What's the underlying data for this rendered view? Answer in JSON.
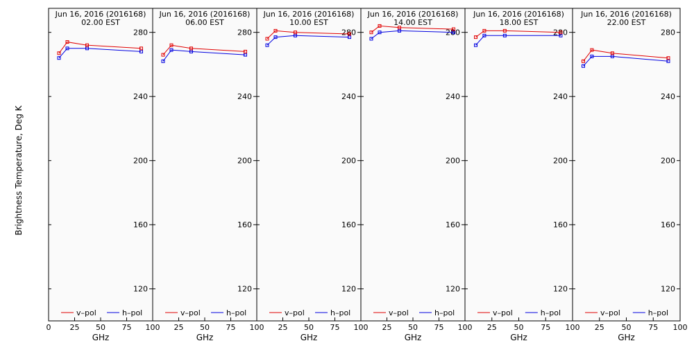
{
  "figure": {
    "ylabel": "Brightness Temperature, Deg K",
    "xlabel": "GHz",
    "legend": {
      "vpol": "v–pol",
      "hpol": "h–pol",
      "placement": "bottom"
    },
    "colors": {
      "vpol": "#e00000",
      "hpol": "#0000e0",
      "background": "#fafafa",
      "frame": "#000000"
    }
  },
  "chart_data": [
    {
      "type": "line",
      "title": "Jun 16, 2016 (2016168)",
      "subtitle": "02.00 EST",
      "x": [
        10,
        18,
        37,
        89
      ],
      "series": [
        {
          "name": "v–pol",
          "values": [
            267,
            274,
            272,
            270
          ]
        },
        {
          "name": "h–pol",
          "values": [
            264,
            270,
            270,
            268
          ]
        }
      ],
      "xlim": [
        0,
        100
      ],
      "ylim": [
        100,
        295
      ],
      "xticks": [
        0,
        25,
        50,
        75,
        100
      ],
      "yticks": [
        120,
        160,
        200,
        240,
        280
      ],
      "xtick_labels": [
        "0",
        "25",
        "50",
        "75",
        "100"
      ],
      "ytick_labels": [
        "120",
        "160",
        "200",
        "240",
        "280"
      ]
    },
    {
      "type": "line",
      "title": "Jun 16, 2016 (2016168)",
      "subtitle": "06.00 EST",
      "x": [
        10,
        18,
        37,
        89
      ],
      "series": [
        {
          "name": "v–pol",
          "values": [
            266,
            272,
            270,
            268
          ]
        },
        {
          "name": "h–pol",
          "values": [
            262,
            269,
            268,
            266
          ]
        }
      ],
      "xlim": [
        0,
        100
      ],
      "ylim": [
        100,
        295
      ],
      "xticks": [
        0,
        25,
        50,
        75,
        100
      ],
      "yticks": [
        120,
        160,
        200,
        240,
        280
      ],
      "xtick_labels": [
        "",
        "25",
        "50",
        "75",
        "100"
      ],
      "ytick_labels": [
        "120",
        "160",
        "200",
        "240",
        "280"
      ]
    },
    {
      "type": "line",
      "title": "Jun 16, 2016 (2016168)",
      "subtitle": "10.00 EST",
      "x": [
        10,
        18,
        37,
        89
      ],
      "series": [
        {
          "name": "v–pol",
          "values": [
            276,
            281,
            280,
            279
          ]
        },
        {
          "name": "h–pol",
          "values": [
            272,
            277,
            278,
            277
          ]
        }
      ],
      "xlim": [
        0,
        100
      ],
      "ylim": [
        100,
        295
      ],
      "xticks": [
        0,
        25,
        50,
        75,
        100
      ],
      "yticks": [
        120,
        160,
        200,
        240,
        280
      ],
      "xtick_labels": [
        "",
        "25",
        "50",
        "75",
        "100"
      ],
      "ytick_labels": [
        "120",
        "160",
        "200",
        "240",
        "280"
      ]
    },
    {
      "type": "line",
      "title": "Jun 16, 2016 (2016168)",
      "subtitle": "14.00 EST",
      "x": [
        10,
        18,
        37,
        89
      ],
      "series": [
        {
          "name": "v–pol",
          "values": [
            280,
            284,
            283,
            282
          ]
        },
        {
          "name": "h–pol",
          "values": [
            276,
            280,
            281,
            280
          ]
        }
      ],
      "xlim": [
        0,
        100
      ],
      "ylim": [
        100,
        295
      ],
      "xticks": [
        0,
        25,
        50,
        75,
        100
      ],
      "yticks": [
        120,
        160,
        200,
        240,
        280
      ],
      "xtick_labels": [
        "",
        "25",
        "50",
        "75",
        "100"
      ],
      "ytick_labels": [
        "120",
        "160",
        "200",
        "240",
        "280"
      ]
    },
    {
      "type": "line",
      "title": "Jun 16, 2016 (2016168)",
      "subtitle": "18.00 EST",
      "x": [
        10,
        18,
        37,
        89
      ],
      "series": [
        {
          "name": "v–pol",
          "values": [
            277,
            281,
            281,
            280
          ]
        },
        {
          "name": "h–pol",
          "values": [
            272,
            278,
            278,
            278
          ]
        }
      ],
      "xlim": [
        0,
        100
      ],
      "ylim": [
        100,
        295
      ],
      "xticks": [
        0,
        25,
        50,
        75,
        100
      ],
      "yticks": [
        120,
        160,
        200,
        240,
        280
      ],
      "xtick_labels": [
        "",
        "25",
        "50",
        "75",
        "100"
      ],
      "ytick_labels": [
        "120",
        "160",
        "200",
        "240",
        "280"
      ]
    },
    {
      "type": "line",
      "title": "Jun 16, 2016 (2016168)",
      "subtitle": "22.00 EST",
      "x": [
        10,
        18,
        37,
        89
      ],
      "series": [
        {
          "name": "v–pol",
          "values": [
            262,
            269,
            267,
            264
          ]
        },
        {
          "name": "h–pol",
          "values": [
            259,
            265,
            265,
            262
          ]
        }
      ],
      "xlim": [
        0,
        100
      ],
      "ylim": [
        100,
        295
      ],
      "xticks": [
        0,
        25,
        50,
        75,
        100
      ],
      "yticks": [
        120,
        160,
        200,
        240,
        280
      ],
      "xtick_labels": [
        "",
        "25",
        "50",
        "75",
        "100"
      ],
      "ytick_labels": [
        "120",
        "160",
        "200",
        "240",
        "280"
      ]
    }
  ]
}
